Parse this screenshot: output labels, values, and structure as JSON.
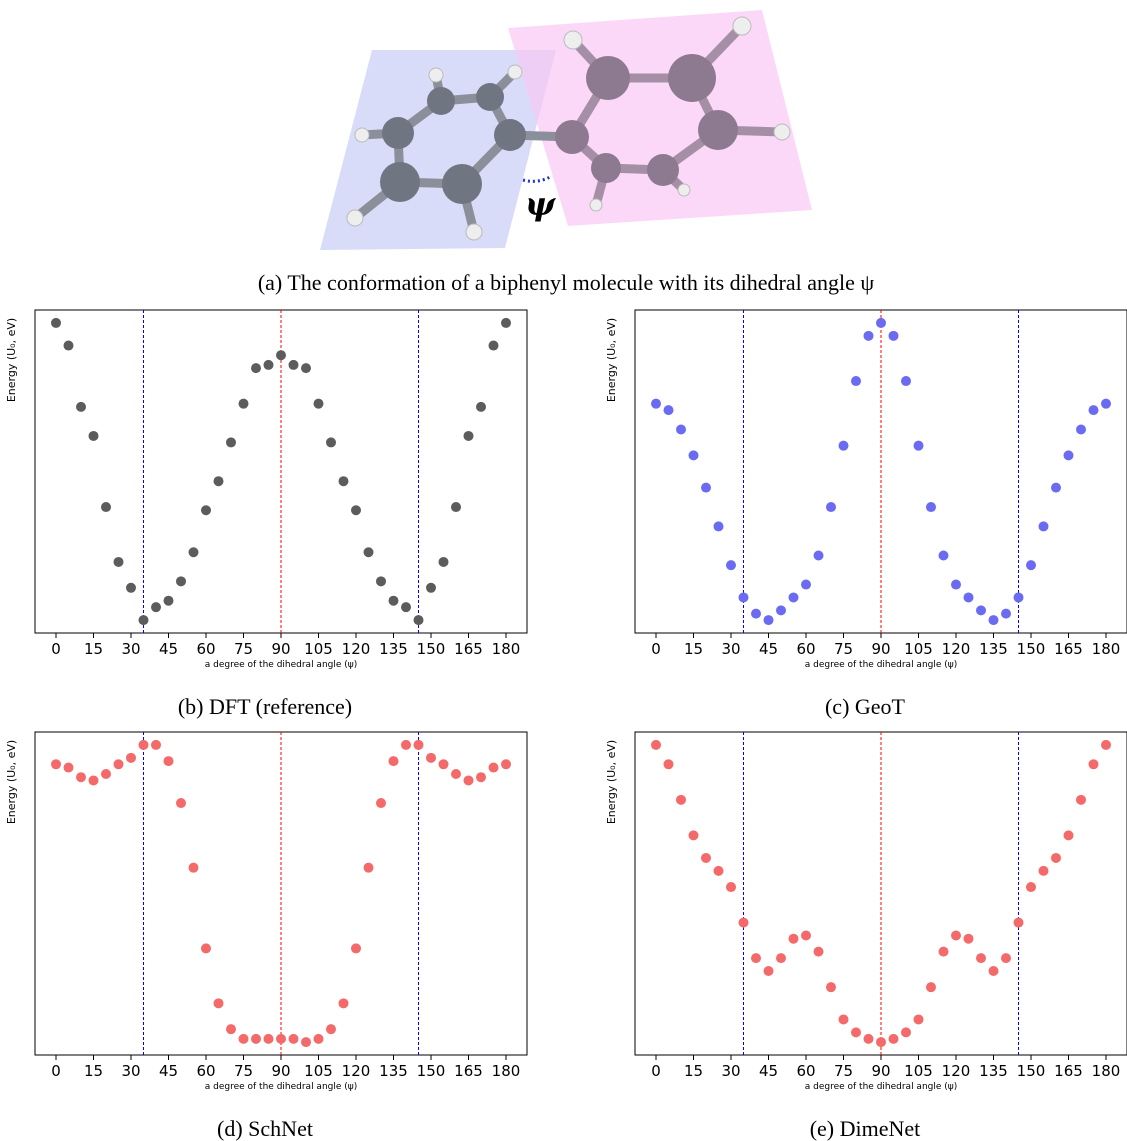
{
  "figure": {
    "angle_label": "ψ",
    "caption": "(a) The conformation of a biphenyl molecule with its dihedral angle ψ"
  },
  "chart_data": [
    {
      "type": "scatter",
      "caption": "(b) DFT (reference)",
      "xlabel": "a degree of the dihedral angle (ψ)",
      "ylabel": "Energy (U₀, eV)",
      "color": "#5c5c5c",
      "x": [
        0,
        5,
        10,
        15,
        20,
        25,
        30,
        35,
        40,
        45,
        50,
        55,
        60,
        65,
        70,
        75,
        80,
        85,
        90,
        95,
        100,
        105,
        110,
        115,
        120,
        125,
        130,
        135,
        140,
        145,
        150,
        155,
        160,
        165,
        170,
        175,
        180
      ],
      "values": [
        0.96,
        0.89,
        0.7,
        0.61,
        0.39,
        0.22,
        0.14,
        0.04,
        0.08,
        0.1,
        0.16,
        0.25,
        0.38,
        0.47,
        0.59,
        0.71,
        0.82,
        0.83,
        0.86,
        0.83,
        0.82,
        0.71,
        0.59,
        0.47,
        0.38,
        0.25,
        0.16,
        0.1,
        0.08,
        0.04,
        0.14,
        0.22,
        0.39,
        0.61,
        0.7,
        0.89,
        0.96
      ],
      "xlim": [
        -8.4,
        188.4
      ],
      "ylim": [
        0,
        1
      ],
      "xticks": [
        0,
        15,
        30,
        45,
        60,
        75,
        90,
        105,
        120,
        135,
        150,
        165,
        180
      ],
      "vlines": [
        {
          "x": 35,
          "color": "#0000ff"
        },
        {
          "x": 90,
          "color": "#ff0000"
        },
        {
          "x": 145,
          "color": "#0000ff"
        }
      ]
    },
    {
      "type": "scatter",
      "caption": "(c) GeoT",
      "xlabel": "a degree of the dihedral angle (ψ)",
      "ylabel": "Energy (U₀, eV)",
      "color": "#6b6bf2",
      "x": [
        0,
        5,
        10,
        15,
        20,
        25,
        30,
        35,
        40,
        45,
        50,
        55,
        60,
        65,
        70,
        75,
        80,
        85,
        90,
        95,
        100,
        105,
        110,
        115,
        120,
        125,
        130,
        135,
        140,
        145,
        150,
        155,
        160,
        165,
        170,
        175,
        180
      ],
      "values": [
        0.71,
        0.69,
        0.63,
        0.55,
        0.45,
        0.33,
        0.21,
        0.11,
        0.06,
        0.04,
        0.07,
        0.11,
        0.15,
        0.24,
        0.39,
        0.58,
        0.78,
        0.92,
        0.96,
        0.92,
        0.78,
        0.58,
        0.39,
        0.24,
        0.15,
        0.11,
        0.07,
        0.04,
        0.06,
        0.11,
        0.21,
        0.33,
        0.45,
        0.55,
        0.63,
        0.69,
        0.71
      ],
      "xlim": [
        -8.4,
        188.4
      ],
      "ylim": [
        0,
        1
      ],
      "xticks": [
        0,
        15,
        30,
        45,
        60,
        75,
        90,
        105,
        120,
        135,
        150,
        165,
        180
      ],
      "vlines": [
        {
          "x": 35,
          "color": "#0000ff"
        },
        {
          "x": 90,
          "color": "#ff0000"
        },
        {
          "x": 145,
          "color": "#0000ff"
        }
      ]
    },
    {
      "type": "scatter",
      "caption": "(d) SchNet",
      "xlabel": "a degree of the dihedral angle (ψ)",
      "ylabel": "Energy (U₀, eV)",
      "color": "#f46a6a",
      "x": [
        0,
        5,
        10,
        15,
        20,
        25,
        30,
        35,
        40,
        45,
        50,
        55,
        60,
        65,
        70,
        75,
        80,
        85,
        90,
        95,
        100,
        105,
        110,
        115,
        120,
        125,
        130,
        135,
        140,
        145,
        150,
        155,
        160,
        165,
        170,
        175,
        180
      ],
      "values": [
        0.9,
        0.89,
        0.86,
        0.85,
        0.87,
        0.9,
        0.92,
        0.96,
        0.96,
        0.91,
        0.78,
        0.58,
        0.33,
        0.16,
        0.08,
        0.05,
        0.05,
        0.05,
        0.05,
        0.05,
        0.04,
        0.05,
        0.08,
        0.16,
        0.33,
        0.58,
        0.78,
        0.91,
        0.96,
        0.96,
        0.92,
        0.9,
        0.87,
        0.85,
        0.86,
        0.89,
        0.9
      ],
      "xlim": [
        -8.4,
        188.4
      ],
      "ylim": [
        0,
        1
      ],
      "xticks": [
        0,
        15,
        30,
        45,
        60,
        75,
        90,
        105,
        120,
        135,
        150,
        165,
        180
      ],
      "vlines": [
        {
          "x": 35,
          "color": "#0000ff"
        },
        {
          "x": 90,
          "color": "#ff0000"
        },
        {
          "x": 145,
          "color": "#0000ff"
        }
      ]
    },
    {
      "type": "scatter",
      "caption": "(e) DimeNet",
      "xlabel": "a degree of the dihedral angle (ψ)",
      "ylabel": "Energy (U₀, eV)",
      "color": "#f46a6a",
      "x": [
        0,
        5,
        10,
        15,
        20,
        25,
        30,
        35,
        40,
        45,
        50,
        55,
        60,
        65,
        70,
        75,
        80,
        85,
        90,
        95,
        100,
        105,
        110,
        115,
        120,
        125,
        130,
        135,
        140,
        145,
        150,
        155,
        160,
        165,
        170,
        175,
        180
      ],
      "values": [
        0.96,
        0.9,
        0.79,
        0.68,
        0.61,
        0.57,
        0.52,
        0.41,
        0.3,
        0.26,
        0.3,
        0.36,
        0.37,
        0.32,
        0.21,
        0.11,
        0.07,
        0.05,
        0.04,
        0.05,
        0.07,
        0.11,
        0.21,
        0.32,
        0.37,
        0.36,
        0.3,
        0.26,
        0.3,
        0.41,
        0.52,
        0.57,
        0.61,
        0.68,
        0.79,
        0.9,
        0.96
      ],
      "xlim": [
        -8.4,
        188.4
      ],
      "ylim": [
        0,
        1
      ],
      "xticks": [
        0,
        15,
        30,
        45,
        60,
        75,
        90,
        105,
        120,
        135,
        150,
        165,
        180
      ],
      "vlines": [
        {
          "x": 35,
          "color": "#0000ff"
        },
        {
          "x": 90,
          "color": "#ff0000"
        },
        {
          "x": 145,
          "color": "#0000ff"
        }
      ]
    }
  ]
}
